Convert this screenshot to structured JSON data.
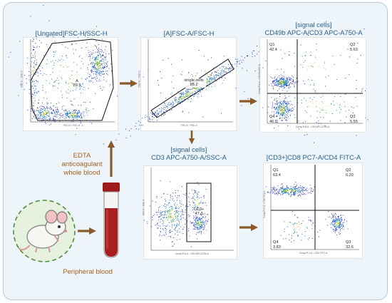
{
  "diagram": {
    "colors": {
      "frame_bg": "#edf4fa",
      "title": "#2d5f86",
      "arrow": "#8a5a2b",
      "note": "#a56020",
      "mouse_circle": "#e6f2df",
      "blood": "#a81f1f"
    },
    "left_labels": {
      "edta": "EDTA\nanticoagulant\nwhole blood",
      "peripheral": "Peripheral blood"
    },
    "icons": {
      "mouse": "mouse-icon",
      "tube": "blood-tube-icon"
    },
    "plots": [
      {
        "id": "p1",
        "title": "[Ungated]FSC-H/SSC-H",
        "gates": [
          {
            "label": "A",
            "value": "29.9"
          }
        ],
        "axes": {
          "x": "FSC-H :: FSC-H",
          "y": "SSC-H :: SSC-H"
        }
      },
      {
        "id": "p2",
        "title": "[A]FSC-A/FSC-H",
        "gates": [
          {
            "label": "single cells",
            "value": "98.2"
          }
        ],
        "axes": {
          "x": "FSC-A :: FSC-A",
          "y": "FSC-H :: FSC-H"
        }
      },
      {
        "id": "p3",
        "title": "[signal cells]\nCD49b APC-A/CD3 APC-A750-A",
        "quadrants": [
          {
            "label": "Q1",
            "value": "42.4"
          },
          {
            "label": "Q2",
            "value": "5.63"
          },
          {
            "label": "Q3",
            "value": "5.55"
          },
          {
            "label": "Q4",
            "value": "46.5"
          }
        ],
        "axes": {
          "x": "Comp-FL8-A :: CD3 APC-A750-A",
          "y": "Comp-FL6-A :: CD49b APC-A"
        }
      },
      {
        "id": "p4",
        "title": "[signal cells]\nCD3 APC-A750-A/SSC-A",
        "gates": [
          {
            "label": "CD3+",
            "value": "47.3"
          }
        ],
        "axes": {
          "x": "Comp-FL8-A :: CD3 APC-A750-A",
          "y": "SSC-A :: SSC-A"
        }
      },
      {
        "id": "p5",
        "title": "[CD3+]CD8 PC7-A/CD4 FITC-A",
        "quadrants": [
          {
            "label": "Q1",
            "value": "63.4"
          },
          {
            "label": "Q2",
            "value": "0.20"
          },
          {
            "label": "Q3",
            "value": "32.6"
          },
          {
            "label": "Q4",
            "value": "3.83"
          }
        ],
        "axes": {
          "x": "Comp-FL1-A :: CD4 FITC-A",
          "y": "Comp-FL5-A :: CD8 PC7-A"
        }
      }
    ]
  }
}
